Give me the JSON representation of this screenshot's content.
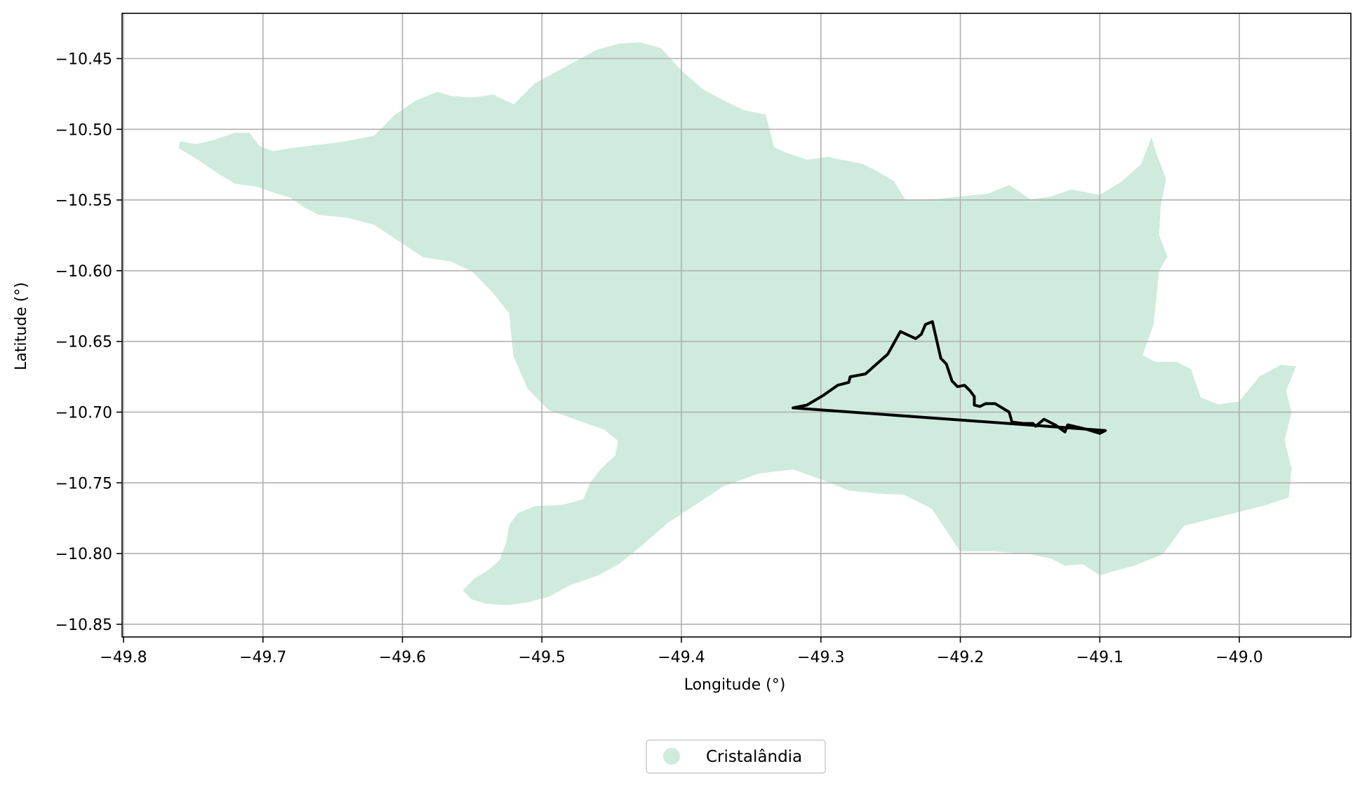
{
  "chart_data": {
    "type": "map",
    "xlabel": "Longitude (°)",
    "ylabel": "Latitude (°)",
    "xlim": [
      -49.801,
      -48.92
    ],
    "ylim": [
      -10.859,
      -10.418
    ],
    "x_ticks": [
      -49.8,
      -49.7,
      -49.6,
      -49.5,
      -49.4,
      -49.3,
      -49.2,
      -49.1,
      -49.0
    ],
    "y_ticks": [
      -10.45,
      -10.5,
      -10.55,
      -10.6,
      -10.65,
      -10.7,
      -10.75,
      -10.8,
      -10.85
    ],
    "x_tick_labels": [
      "−49.8",
      "−49.7",
      "−49.6",
      "−49.5",
      "−49.4",
      "−49.3",
      "−49.2",
      "−49.1",
      "−49.0"
    ],
    "y_tick_labels": [
      "−10.45",
      "−10.50",
      "−10.55",
      "−10.60",
      "−10.65",
      "−10.70",
      "−10.75",
      "−10.80",
      "−10.85"
    ],
    "grid": true,
    "legend": {
      "placement": "bottom-center",
      "entries": [
        {
          "name": "Cristalândia",
          "color": "#cfebdd"
        }
      ]
    },
    "region": {
      "name": "Cristalândia",
      "fill": "#cfebdd",
      "outline": [
        [
          -49.759,
          -10.509
        ],
        [
          -49.748,
          -10.511
        ],
        [
          -49.735,
          -10.508
        ],
        [
          -49.72,
          -10.503
        ],
        [
          -49.71,
          -10.503
        ],
        [
          -49.703,
          -10.512
        ],
        [
          -49.693,
          -10.516
        ],
        [
          -49.681,
          -10.514
        ],
        [
          -49.665,
          -10.512
        ],
        [
          -49.648,
          -10.51
        ],
        [
          -49.635,
          -10.508
        ],
        [
          -49.62,
          -10.505
        ],
        [
          -49.605,
          -10.49
        ],
        [
          -49.59,
          -10.48
        ],
        [
          -49.575,
          -10.474
        ],
        [
          -49.565,
          -10.477
        ],
        [
          -49.55,
          -10.478
        ],
        [
          -49.535,
          -10.476
        ],
        [
          -49.52,
          -10.483
        ],
        [
          -49.505,
          -10.468
        ],
        [
          -49.49,
          -10.46
        ],
        [
          -49.475,
          -10.452
        ],
        [
          -49.46,
          -10.444
        ],
        [
          -49.445,
          -10.44
        ],
        [
          -49.43,
          -10.439
        ],
        [
          -49.415,
          -10.443
        ],
        [
          -49.4,
          -10.459
        ],
        [
          -49.385,
          -10.472
        ],
        [
          -49.37,
          -10.48
        ],
        [
          -49.355,
          -10.487
        ],
        [
          -49.34,
          -10.49
        ],
        [
          -49.334,
          -10.513
        ],
        [
          -49.325,
          -10.517
        ],
        [
          -49.31,
          -10.522
        ],
        [
          -49.295,
          -10.52
        ],
        [
          -49.28,
          -10.523
        ],
        [
          -49.27,
          -10.525
        ],
        [
          -49.26,
          -10.53
        ],
        [
          -49.248,
          -10.537
        ],
        [
          -49.24,
          -10.55
        ],
        [
          -49.22,
          -10.55
        ],
        [
          -49.2,
          -10.548
        ],
        [
          -49.18,
          -10.546
        ],
        [
          -49.165,
          -10.54
        ],
        [
          -49.15,
          -10.55
        ],
        [
          -49.135,
          -10.548
        ],
        [
          -49.12,
          -10.543
        ],
        [
          -49.1,
          -10.547
        ],
        [
          -49.085,
          -10.538
        ],
        [
          -49.07,
          -10.525
        ],
        [
          -49.063,
          -10.507
        ],
        [
          -49.06,
          -10.517
        ],
        [
          -49.053,
          -10.535
        ],
        [
          -49.057,
          -10.555
        ],
        [
          -49.058,
          -10.575
        ],
        [
          -49.052,
          -10.59
        ],
        [
          -49.058,
          -10.6
        ],
        [
          -49.06,
          -10.62
        ],
        [
          -49.062,
          -10.638
        ],
        [
          -49.07,
          -10.66
        ],
        [
          -49.06,
          -10.665
        ],
        [
          -49.045,
          -10.665
        ],
        [
          -49.035,
          -10.67
        ],
        [
          -49.028,
          -10.69
        ],
        [
          -49.015,
          -10.695
        ],
        [
          -49.0,
          -10.693
        ],
        [
          -48.985,
          -10.675
        ],
        [
          -48.97,
          -10.667
        ],
        [
          -48.96,
          -10.668
        ],
        [
          -48.967,
          -10.685
        ],
        [
          -48.963,
          -10.7
        ],
        [
          -48.968,
          -10.72
        ],
        [
          -48.963,
          -10.74
        ],
        [
          -48.965,
          -10.76
        ],
        [
          -48.98,
          -10.765
        ],
        [
          -49.0,
          -10.77
        ],
        [
          -49.02,
          -10.775
        ],
        [
          -49.04,
          -10.78
        ],
        [
          -49.055,
          -10.8
        ],
        [
          -49.075,
          -10.808
        ],
        [
          -49.09,
          -10.812
        ],
        [
          -49.1,
          -10.815
        ],
        [
          -49.112,
          -10.807
        ],
        [
          -49.125,
          -10.808
        ],
        [
          -49.135,
          -10.803
        ],
        [
          -49.15,
          -10.8
        ],
        [
          -49.175,
          -10.798
        ],
        [
          -49.2,
          -10.798
        ],
        [
          -49.21,
          -10.783
        ],
        [
          -49.22,
          -10.768
        ],
        [
          -49.24,
          -10.758
        ],
        [
          -49.26,
          -10.757
        ],
        [
          -49.28,
          -10.755
        ],
        [
          -49.3,
          -10.747
        ],
        [
          -49.32,
          -10.74
        ],
        [
          -49.345,
          -10.743
        ],
        [
          -49.37,
          -10.752
        ],
        [
          -49.39,
          -10.765
        ],
        [
          -49.41,
          -10.778
        ],
        [
          -49.43,
          -10.795
        ],
        [
          -49.445,
          -10.807
        ],
        [
          -49.46,
          -10.815
        ],
        [
          -49.48,
          -10.822
        ],
        [
          -49.495,
          -10.83
        ],
        [
          -49.51,
          -10.834
        ],
        [
          -49.525,
          -10.836
        ],
        [
          -49.54,
          -10.835
        ],
        [
          -49.55,
          -10.832
        ],
        [
          -49.556,
          -10.826
        ],
        [
          -49.548,
          -10.818
        ],
        [
          -49.538,
          -10.812
        ],
        [
          -49.53,
          -10.805
        ],
        [
          -49.525,
          -10.792
        ],
        [
          -49.523,
          -10.78
        ],
        [
          -49.517,
          -10.772
        ],
        [
          -49.505,
          -10.767
        ],
        [
          -49.485,
          -10.766
        ],
        [
          -49.47,
          -10.762
        ],
        [
          -49.465,
          -10.75
        ],
        [
          -49.457,
          -10.74
        ],
        [
          -49.447,
          -10.731
        ],
        [
          -49.445,
          -10.72
        ],
        [
          -49.455,
          -10.712
        ],
        [
          -49.475,
          -10.705
        ],
        [
          -49.495,
          -10.698
        ],
        [
          -49.51,
          -10.683
        ],
        [
          -49.52,
          -10.66
        ],
        [
          -49.523,
          -10.63
        ],
        [
          -49.535,
          -10.615
        ],
        [
          -49.55,
          -10.6
        ],
        [
          -49.565,
          -10.593
        ],
        [
          -49.585,
          -10.59
        ],
        [
          -49.605,
          -10.577
        ],
        [
          -49.62,
          -10.567
        ],
        [
          -49.64,
          -10.562
        ],
        [
          -49.66,
          -10.56
        ],
        [
          -49.67,
          -10.555
        ],
        [
          -49.68,
          -10.548
        ],
        [
          -49.69,
          -10.545
        ],
        [
          -49.705,
          -10.54
        ],
        [
          -49.72,
          -10.538
        ],
        [
          -49.73,
          -10.532
        ],
        [
          -49.745,
          -10.522
        ],
        [
          -49.76,
          -10.513
        ]
      ],
      "highlight_outline": [
        [
          -49.32,
          -10.697
        ],
        [
          -49.31,
          -10.695
        ],
        [
          -49.298,
          -10.688
        ],
        [
          -49.288,
          -10.681
        ],
        [
          -49.28,
          -10.679
        ],
        [
          -49.279,
          -10.675
        ],
        [
          -49.268,
          -10.673
        ],
        [
          -49.26,
          -10.666
        ],
        [
          -49.252,
          -10.659
        ],
        [
          -49.243,
          -10.643
        ],
        [
          -49.232,
          -10.648
        ],
        [
          -49.228,
          -10.645
        ],
        [
          -49.225,
          -10.638
        ],
        [
          -49.22,
          -10.636
        ],
        [
          -49.214,
          -10.662
        ],
        [
          -49.21,
          -10.666
        ],
        [
          -49.208,
          -10.672
        ],
        [
          -49.206,
          -10.678
        ],
        [
          -49.202,
          -10.682
        ],
        [
          -49.197,
          -10.681
        ],
        [
          -49.193,
          -10.685
        ],
        [
          -49.19,
          -10.689
        ],
        [
          -49.19,
          -10.695
        ],
        [
          -49.186,
          -10.696
        ],
        [
          -49.182,
          -10.694
        ],
        [
          -49.175,
          -10.694
        ],
        [
          -49.17,
          -10.697
        ],
        [
          -49.165,
          -10.7
        ],
        [
          -49.163,
          -10.707
        ],
        [
          -49.155,
          -10.708
        ],
        [
          -49.148,
          -10.708
        ],
        [
          -49.146,
          -10.71
        ],
        [
          -49.14,
          -10.705
        ],
        [
          -49.132,
          -10.709
        ],
        [
          -49.125,
          -10.714
        ],
        [
          -49.123,
          -10.709
        ],
        [
          -49.11,
          -10.712
        ],
        [
          -49.1,
          -10.715
        ],
        [
          -49.096,
          -10.713
        ]
      ]
    }
  }
}
